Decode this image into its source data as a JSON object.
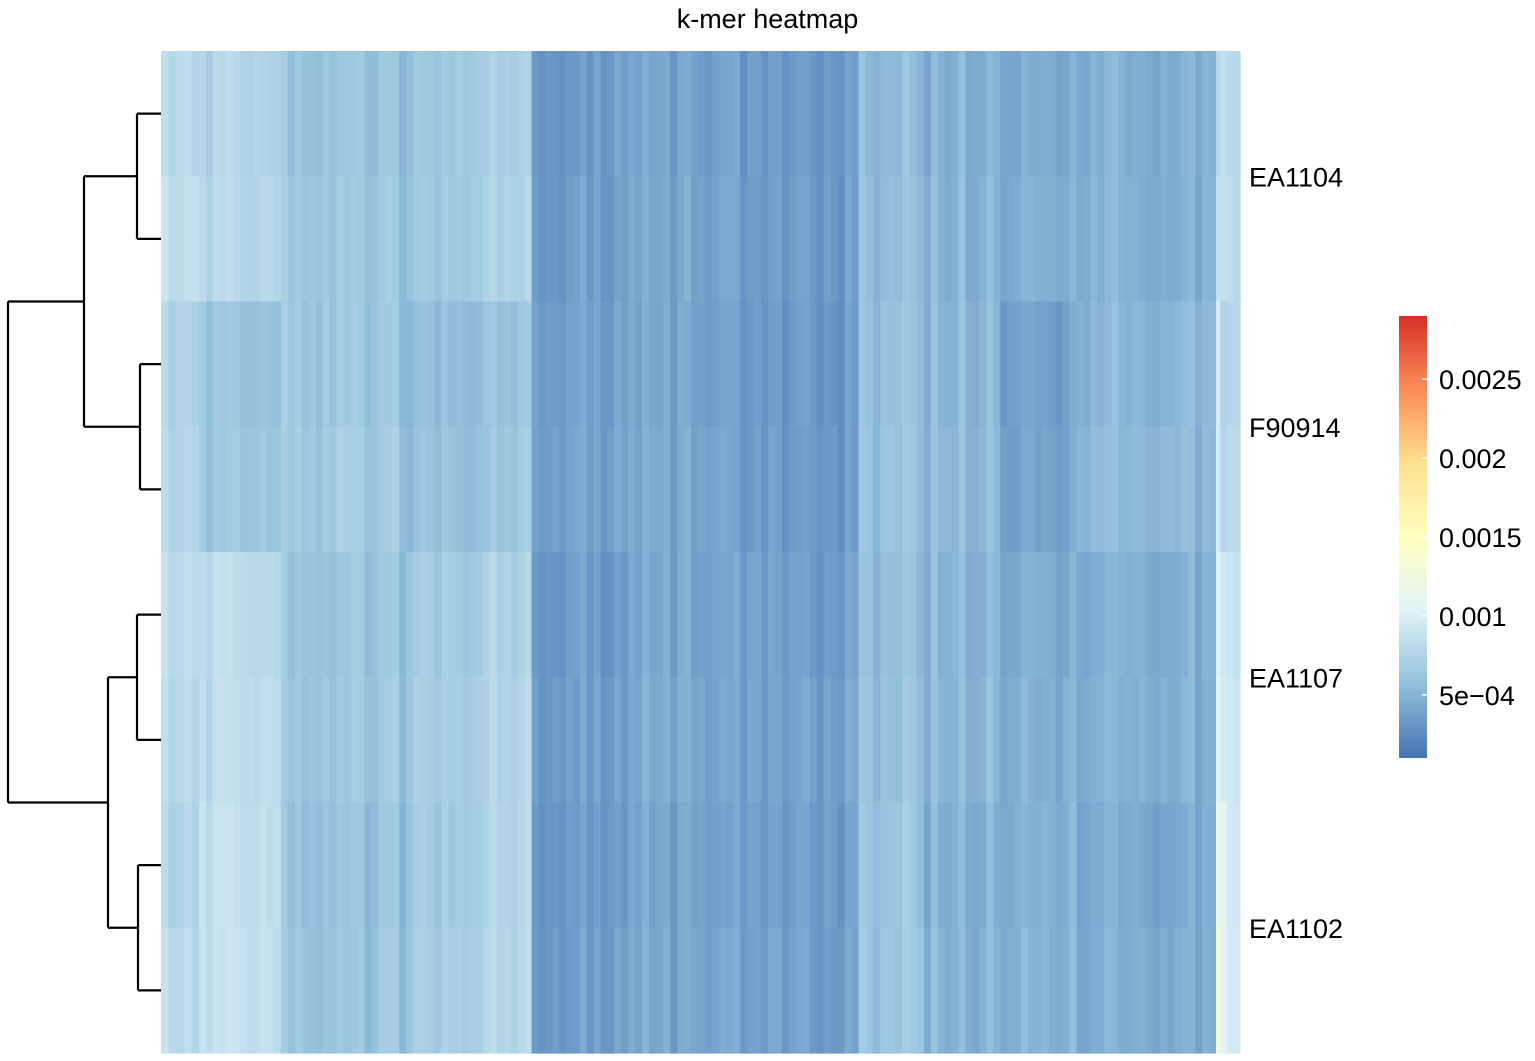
{
  "chart_data": {
    "type": "heatmap",
    "title": "k-mer heatmap",
    "rows": [
      "EA1104",
      "F90914",
      "EA1107",
      "EA1102"
    ],
    "samples_per_row_group": 2,
    "x_labels_shown": false,
    "row_dendrogram": true,
    "colorbar": {
      "ticks": [
        0.0005,
        0.001,
        0.0015,
        0.002,
        0.0025
      ],
      "tick_labels": [
        "5e−04",
        "0.001",
        "0.0015",
        "0.002",
        "0.0025"
      ],
      "range": [
        0.0001,
        0.0029
      ],
      "colors": [
        "#4575b4",
        "#91bfdb",
        "#e0f3f8",
        "#ffffbf",
        "#fee090",
        "#fc8d59",
        "#d73027"
      ]
    },
    "column_blocks": [
      {
        "span": 0.035,
        "values": [
          0.0008,
          0.00085,
          0.00075,
          0.00078,
          0.00082,
          0.00079,
          0.00077,
          0.0008
        ]
      },
      {
        "span": 0.075,
        "values": [
          0.00075,
          0.00078,
          0.0006,
          0.00062,
          0.0008,
          0.00082,
          0.00084,
          0.00086
        ]
      },
      {
        "span": 0.115,
        "values": [
          0.0006,
          0.00062,
          0.00062,
          0.00065,
          0.0006,
          0.00062,
          0.00058,
          0.0006
        ]
      },
      {
        "span": 0.045,
        "values": [
          0.00062,
          0.00064,
          0.00055,
          0.00058,
          0.00065,
          0.00067,
          0.00065,
          0.00068
        ]
      },
      {
        "span": 0.07,
        "values": [
          0.0007,
          0.00072,
          0.0006,
          0.00062,
          0.00072,
          0.00074,
          0.00074,
          0.00076
        ]
      },
      {
        "span": 0.095,
        "values": [
          0.00035,
          0.00036,
          0.00038,
          0.0004,
          0.00035,
          0.00036,
          0.00035,
          0.00036
        ]
      },
      {
        "span": 0.09,
        "values": [
          0.0004,
          0.00042,
          0.0004,
          0.00042,
          0.00041,
          0.00043,
          0.0004,
          0.00042
        ]
      },
      {
        "span": 0.115,
        "values": [
          0.00035,
          0.00036,
          0.00034,
          0.00035,
          0.00038,
          0.00039,
          0.00037,
          0.00038
        ]
      },
      {
        "span": 0.06,
        "values": [
          0.00055,
          0.00057,
          0.0006,
          0.00062,
          0.00058,
          0.0006,
          0.00062,
          0.00064
        ]
      },
      {
        "span": 0.07,
        "values": [
          0.0005,
          0.00052,
          0.00054,
          0.00056,
          0.00052,
          0.00054,
          0.0005,
          0.00052
        ]
      },
      {
        "span": 0.07,
        "values": [
          0.00045,
          0.00047,
          0.00038,
          0.0004,
          0.00046,
          0.00048,
          0.00048,
          0.0005
        ]
      },
      {
        "span": 0.128,
        "values": [
          0.00045,
          0.00046,
          0.0005,
          0.00052,
          0.00045,
          0.00046,
          0.00042,
          0.00044
        ]
      },
      {
        "span": 0.004,
        "values": [
          0.00085,
          0.0009,
          0.001,
          0.00105,
          0.0011,
          0.00115,
          0.0013,
          0.00135
        ]
      },
      {
        "span": 0.006,
        "values": [
          0.0009,
          0.00092,
          0.0008,
          0.00082,
          0.001,
          0.00102,
          0.0011,
          0.00112
        ]
      },
      {
        "span": 0.012,
        "values": [
          0.0008,
          0.00082,
          0.00078,
          0.0008,
          0.0009,
          0.00092,
          0.00095,
          0.00097
        ]
      }
    ]
  }
}
